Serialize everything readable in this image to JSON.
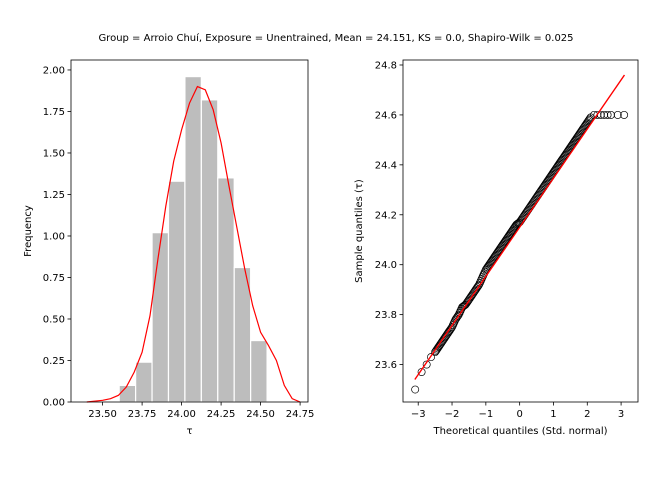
{
  "title": "Group = Arroio Chuí, Exposure = Unentrained, Mean = 24.151, KS = 0.0, Shapiro-Wilk = 0.025",
  "colors": {
    "bar": "#bdbdbd",
    "bar_edge": "#ffffff",
    "kde": "#ff0000",
    "qq_line": "#ff0000",
    "marker_edge": "#000000"
  },
  "chart_data": [
    {
      "type": "bar",
      "name": "histogram",
      "xlabel": "τ",
      "ylabel": "Frequency",
      "xlim": [
        23.3,
        24.8
      ],
      "ylim": [
        0,
        2.06
      ],
      "xticks": [
        23.5,
        23.75,
        24.0,
        24.25,
        24.5,
        24.75
      ],
      "xtick_labels": [
        "23.50",
        "23.75",
        "24.00",
        "24.25",
        "24.50",
        "24.75"
      ],
      "yticks": [
        0,
        0.25,
        0.5,
        0.75,
        1.0,
        1.25,
        1.5,
        1.75,
        2.0
      ],
      "ytick_labels": [
        "0.00",
        "0.25",
        "0.50",
        "0.75",
        "1.00",
        "1.25",
        "1.50",
        "1.75",
        "2.00"
      ],
      "bins": [
        {
          "x0": 23.605,
          "x1": 23.709,
          "value": 0.1
        },
        {
          "x0": 23.709,
          "x1": 23.813,
          "value": 0.24
        },
        {
          "x0": 23.813,
          "x1": 23.917,
          "value": 1.02
        },
        {
          "x0": 23.917,
          "x1": 24.021,
          "value": 1.33
        },
        {
          "x0": 24.021,
          "x1": 24.125,
          "value": 1.96
        },
        {
          "x0": 24.125,
          "x1": 24.229,
          "value": 1.82
        },
        {
          "x0": 24.229,
          "x1": 24.333,
          "value": 1.35
        },
        {
          "x0": 24.333,
          "x1": 24.437,
          "value": 0.81
        },
        {
          "x0": 24.437,
          "x1": 24.541,
          "value": 0.37
        }
      ],
      "kde": {
        "x": [
          23.4,
          23.5,
          23.55,
          23.6,
          23.65,
          23.7,
          23.75,
          23.8,
          23.85,
          23.9,
          23.95,
          24.0,
          24.05,
          24.1,
          24.15,
          24.2,
          24.25,
          24.3,
          24.35,
          24.4,
          24.45,
          24.5,
          24.55,
          24.6,
          24.65,
          24.7,
          24.75
        ],
        "y": [
          0.0,
          0.01,
          0.02,
          0.04,
          0.09,
          0.18,
          0.3,
          0.52,
          0.86,
          1.18,
          1.45,
          1.64,
          1.8,
          1.9,
          1.88,
          1.76,
          1.56,
          1.3,
          1.05,
          0.8,
          0.58,
          0.42,
          0.34,
          0.25,
          0.1,
          0.02,
          0.0
        ]
      }
    },
    {
      "type": "scatter",
      "name": "qq-plot",
      "xlabel": "Theoretical quantiles (Std. normal)",
      "ylabel": "Sample quantiles (τ)",
      "xlim": [
        -3.45,
        3.5
      ],
      "ylim": [
        23.45,
        24.82
      ],
      "xticks": [
        -3,
        -2,
        -1,
        0,
        1,
        2,
        3
      ],
      "xtick_labels": [
        "−3",
        "−2",
        "−1",
        "0",
        "1",
        "2",
        "3"
      ],
      "yticks": [
        23.6,
        23.8,
        24.0,
        24.2,
        24.4,
        24.6,
        24.8
      ],
      "ytick_labels": [
        "23.6",
        "23.8",
        "24.0",
        "24.2",
        "24.4",
        "24.6",
        "24.8"
      ],
      "reference_line": {
        "x": [
          -3.1,
          3.1
        ],
        "y": [
          23.54,
          24.76
        ]
      },
      "points": {
        "x": [
          -3.09,
          -2.9,
          -2.75,
          -2.62,
          -2.5,
          -2.4,
          -2.3,
          -2.2,
          -2.1,
          -2.0,
          -1.9,
          -1.8,
          -1.7,
          -1.6,
          -1.5,
          -1.4,
          -1.3,
          -1.2,
          -1.1,
          -1.0,
          -0.9,
          -0.8,
          -0.7,
          -0.6,
          -0.5,
          -0.4,
          -0.3,
          -0.2,
          -0.1,
          0.0,
          0.1,
          0.2,
          0.3,
          0.4,
          0.5,
          0.6,
          0.7,
          0.8,
          0.9,
          1.0,
          1.1,
          1.2,
          1.3,
          1.4,
          1.5,
          1.6,
          1.7,
          1.8,
          1.9,
          2.0,
          2.1,
          2.2,
          2.3,
          2.4,
          2.5,
          2.6,
          2.7,
          2.9,
          3.09
        ],
        "y": [
          23.5,
          23.57,
          23.6,
          23.63,
          23.65,
          23.67,
          23.69,
          23.71,
          23.73,
          23.75,
          23.78,
          23.8,
          23.83,
          23.84,
          23.86,
          23.88,
          23.9,
          23.92,
          23.95,
          23.98,
          24.0,
          24.02,
          24.04,
          24.06,
          24.08,
          24.1,
          24.12,
          24.14,
          24.16,
          24.17,
          24.19,
          24.21,
          24.23,
          24.25,
          24.27,
          24.29,
          24.31,
          24.33,
          24.35,
          24.37,
          24.39,
          24.41,
          24.43,
          24.45,
          24.47,
          24.49,
          24.51,
          24.53,
          24.55,
          24.57,
          24.59,
          24.6,
          24.6,
          24.6,
          24.6,
          24.6,
          24.6,
          24.6,
          24.6
        ]
      }
    }
  ]
}
